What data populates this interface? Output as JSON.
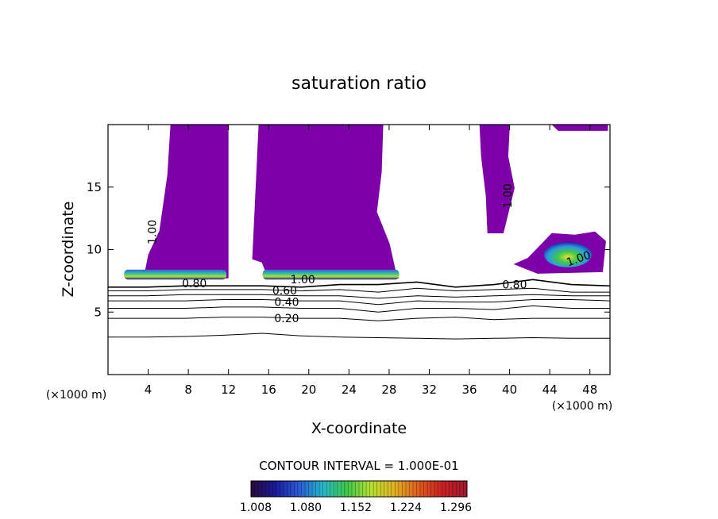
{
  "chart_data": {
    "type": "contour",
    "title": "saturation ratio",
    "xlabel": "X-coordinate",
    "ylabel": "Z-coordinate",
    "x_unit_left": "(×1000 m)",
    "x_unit_right": "(×1000 m)",
    "xlim": [
      0,
      50
    ],
    "ylim": [
      0,
      20
    ],
    "x_ticks": [
      4,
      8,
      12,
      16,
      20,
      24,
      28,
      32,
      36,
      40,
      44,
      48
    ],
    "y_ticks": [
      5,
      10,
      15
    ],
    "contour_interval_text": "CONTOUR INTERVAL = 1.000E-01",
    "colorbar": {
      "labels": [
        "1.008",
        "1.080",
        "1.152",
        "1.224",
        "1.296"
      ],
      "colors": [
        "#2a0a3a",
        "#1a1a9a",
        "#2a5ad8",
        "#26b8c8",
        "#3ec84a",
        "#b8e030",
        "#e0b020",
        "#e05a20",
        "#c82020",
        "#a01830"
      ]
    },
    "fill_color": "#7d00a8",
    "contour_labels": [
      {
        "text": "1.00",
        "x": 4.8,
        "z": 11.4,
        "rot": -90
      },
      {
        "text": "0.80",
        "x": 8.6,
        "z": 7.0,
        "rot": 0
      },
      {
        "text": "1.00",
        "x": 19.4,
        "z": 7.3,
        "rot": 0
      },
      {
        "text": "0.60",
        "x": 17.6,
        "z": 6.4,
        "rot": 0
      },
      {
        "text": "0.40",
        "x": 17.8,
        "z": 5.5,
        "rot": 0
      },
      {
        "text": "0.20",
        "x": 17.8,
        "z": 4.2,
        "rot": 0
      },
      {
        "text": "0.80",
        "x": 40.5,
        "z": 6.9,
        "rot": 0
      },
      {
        "text": "1.00",
        "x": 40.2,
        "z": 14.3,
        "rot": -90
      },
      {
        "text": "1.00",
        "x": 47.0,
        "z": 9.0,
        "rot": -20
      }
    ],
    "saturated_regions": [
      {
        "name": "main cloud west",
        "x_range": [
          4.8,
          12
        ],
        "z_range": [
          7.7,
          20
        ]
      },
      {
        "name": "main cloud east",
        "x_range": [
          15,
          29
        ],
        "z_range": [
          7.7,
          20
        ]
      },
      {
        "name": "anvil strip",
        "x_range": [
          37,
          40.5
        ],
        "z_range": [
          11.3,
          20
        ]
      },
      {
        "name": "top strip",
        "x_range": [
          44.2,
          49.8
        ],
        "z_range": [
          19.5,
          20
        ]
      },
      {
        "name": "east cell",
        "x_range": [
          40.4,
          49.6
        ],
        "z_range": [
          8.2,
          11.7
        ]
      }
    ],
    "contours": [
      {
        "level": "0.20",
        "z": [
          3.0,
          3.0,
          3.05,
          3.15,
          3.3,
          3.1,
          3.0,
          2.95,
          2.9,
          2.85,
          2.9,
          2.95,
          2.9,
          2.9
        ]
      },
      {
        "level": "0.20",
        "z": [
          4.5,
          4.5,
          4.5,
          4.6,
          4.6,
          4.5,
          4.5,
          4.3,
          4.5,
          4.6,
          4.4,
          4.5,
          4.5,
          4.5
        ]
      },
      {
        "level": "0.40",
        "z": [
          5.3,
          5.3,
          5.3,
          5.4,
          5.4,
          5.3,
          5.3,
          5.0,
          5.3,
          5.3,
          5.2,
          5.5,
          5.3,
          5.3
        ]
      },
      {
        "level": "0.60",
        "z": [
          5.9,
          5.9,
          5.9,
          6.0,
          6.0,
          5.9,
          5.9,
          5.6,
          5.9,
          5.8,
          5.8,
          6.0,
          6.0,
          5.9
        ]
      },
      {
        "level": "0.70",
        "z": [
          6.3,
          6.3,
          6.4,
          6.4,
          6.4,
          6.3,
          6.3,
          6.1,
          6.3,
          6.2,
          6.3,
          6.4,
          6.3,
          6.3
        ]
      },
      {
        "level": "0.80",
        "z": [
          6.7,
          6.7,
          6.8,
          6.8,
          6.8,
          6.7,
          6.8,
          6.6,
          6.9,
          6.7,
          6.8,
          6.9,
          6.6,
          6.6
        ]
      },
      {
        "level": "0.90",
        "z": [
          7.0,
          7.0,
          7.1,
          7.1,
          7.1,
          7.0,
          7.2,
          7.2,
          7.4,
          7.0,
          7.2,
          7.6,
          7.2,
          7.1
        ]
      }
    ]
  }
}
